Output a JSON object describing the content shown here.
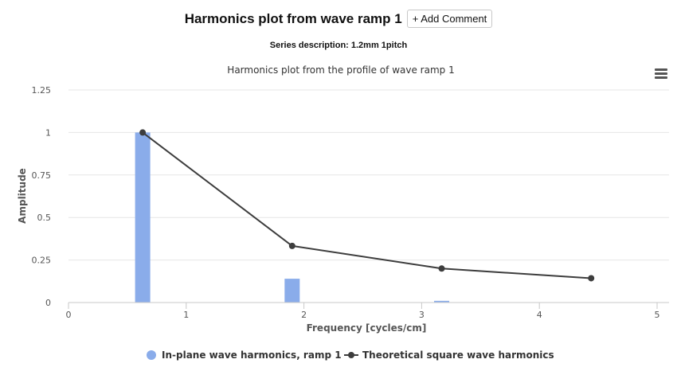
{
  "header": {
    "title": "Harmonics plot from wave ramp 1",
    "add_comment_label": "+ Add Comment",
    "series_description": "Series description: 1.2mm 1pitch"
  },
  "menu": {
    "icon": "hamburger-menu-icon"
  },
  "chart_data": {
    "type": "bar",
    "title": "Harmonics plot from the profile of wave ramp 1",
    "xlabel": "Frequency [cycles/cm]",
    "ylabel": "Amplitude",
    "xlim": [
      0,
      5
    ],
    "ylim": [
      0,
      1.25
    ],
    "x_ticks": [
      "0",
      "1",
      "2",
      "3",
      "4",
      "5"
    ],
    "y_ticks": [
      "0",
      "0.25",
      "0.5",
      "0.75",
      "1",
      "1.25"
    ],
    "grid": true,
    "legend_position": "bottom",
    "series": [
      {
        "name": "In-plane wave harmonics, ramp 1",
        "type": "bar",
        "color": "#8aacea",
        "x": [
          0.63,
          1.9,
          3.17
        ],
        "values": [
          1.0,
          0.14,
          0.01
        ]
      },
      {
        "name": "Theoretical square wave harmonics",
        "type": "line",
        "color": "#3d3d3d",
        "x": [
          0.63,
          1.9,
          3.17,
          4.44
        ],
        "values": [
          1.0,
          0.333,
          0.2,
          0.143
        ]
      }
    ]
  }
}
